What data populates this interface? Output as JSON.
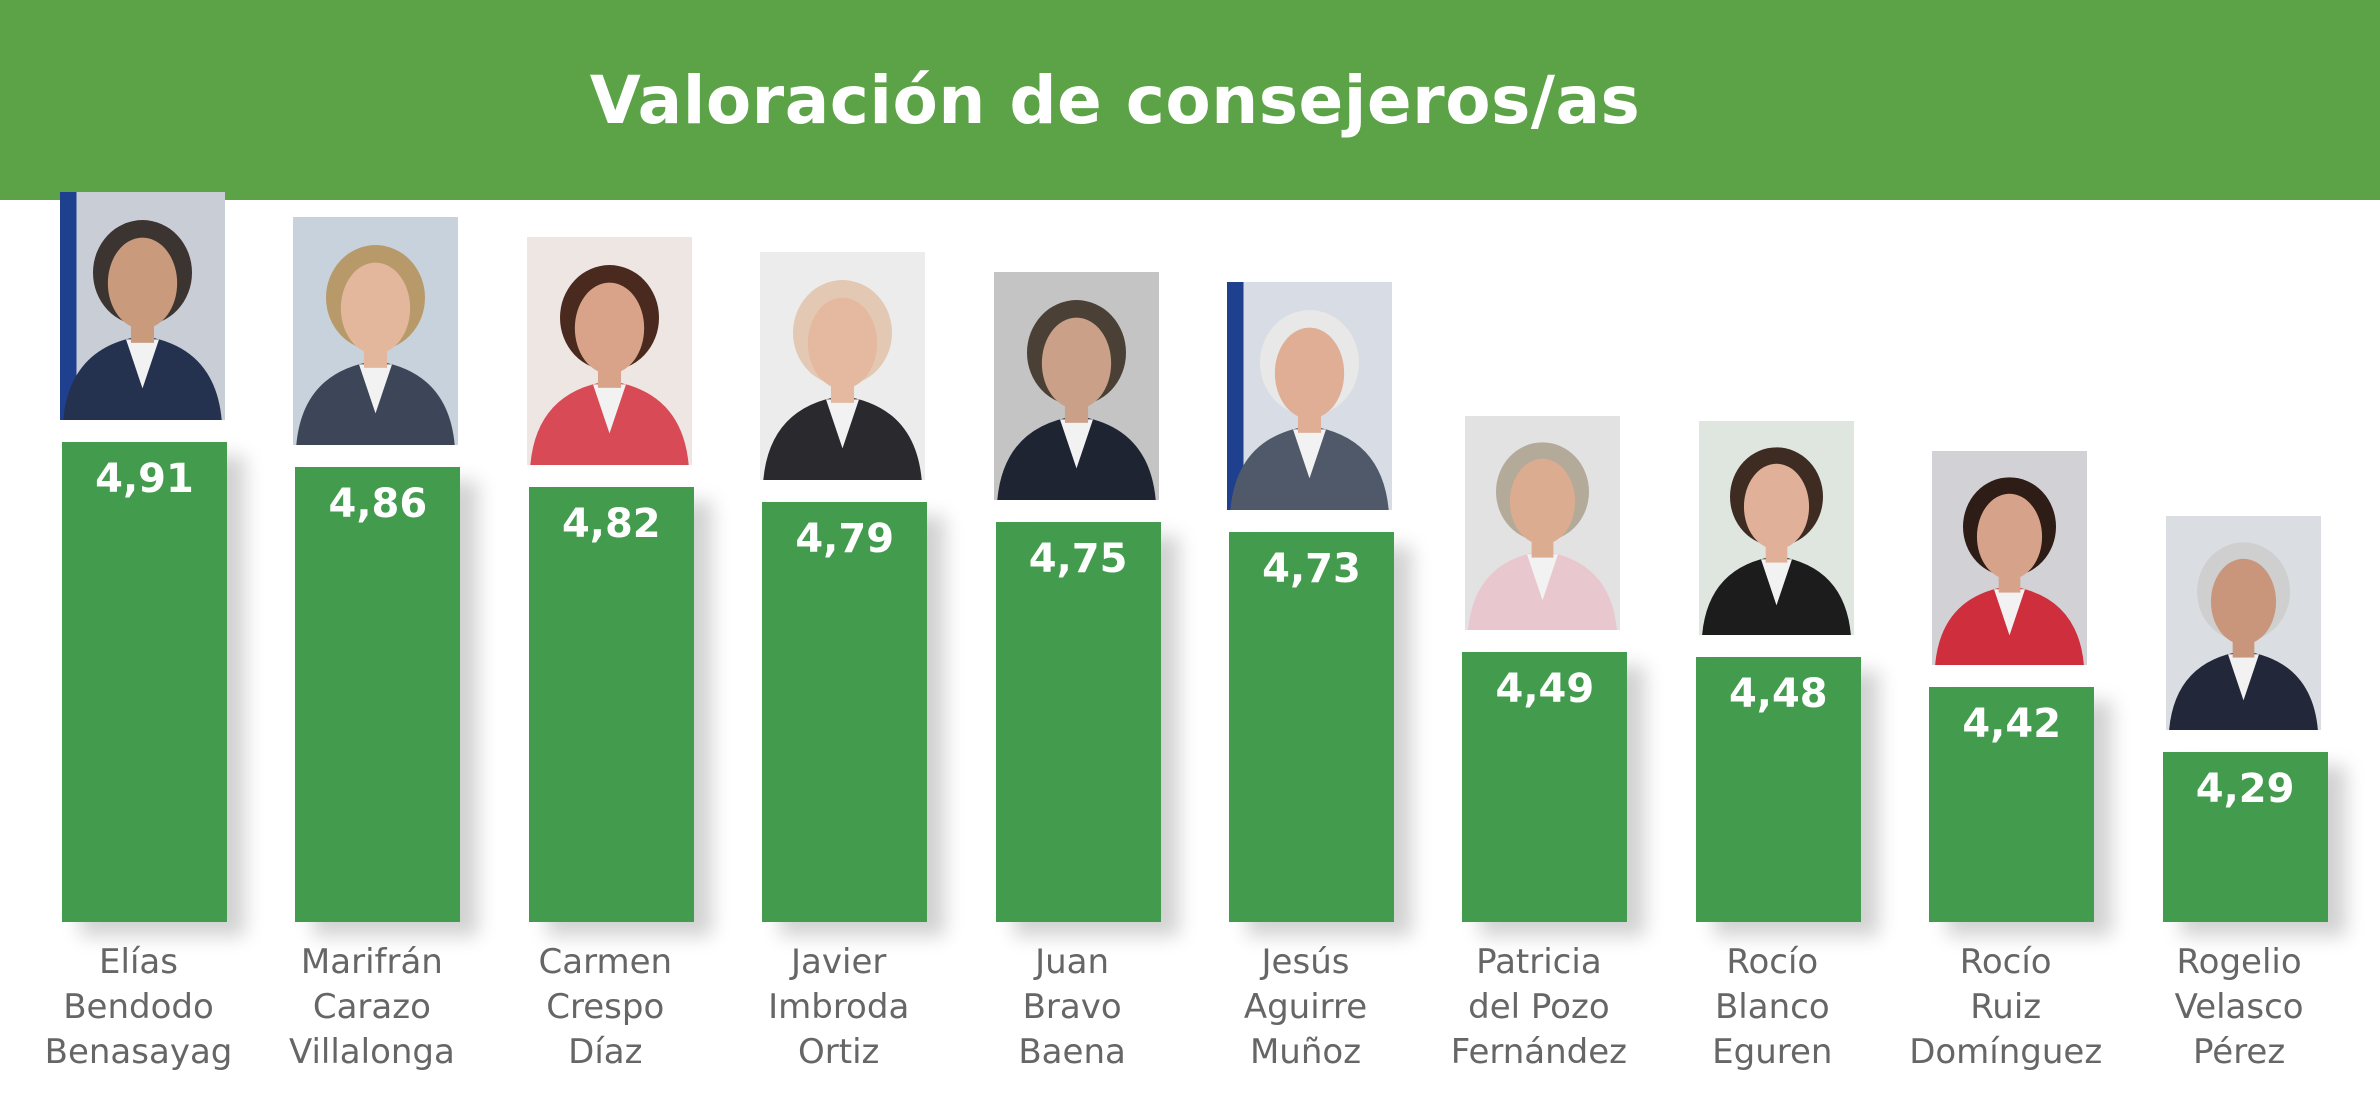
{
  "header": {
    "title": "Valoración de consejeros/as"
  },
  "colors": {
    "header_bg": "#5ba346",
    "bar": "#439b4d",
    "label": "#666666"
  },
  "chart_data": {
    "type": "bar",
    "title": "Valoración de consejeros/as",
    "categories": [
      "Elías Bendodo Benasayag",
      "Marifrán Carazo Villalonga",
      "Carmen Crespo Díaz",
      "Javier Imbroda Ortiz",
      "Juan Bravo Baena",
      "Jesús Aguirre Muñoz",
      "Patricia del Pozo Fernández",
      "Rocío Blanco Eguren",
      "Rocío Ruiz Domínguez",
      "Rogelio Velasco Pérez"
    ],
    "values": [
      4.91,
      4.86,
      4.82,
      4.79,
      4.75,
      4.73,
      4.49,
      4.48,
      4.42,
      4.29
    ],
    "xlabel": "",
    "ylabel": "",
    "grid": false,
    "items": [
      {
        "name_lines": [
          "Elías",
          "Bendodo",
          "Benasayag"
        ],
        "value_label": "4,91",
        "portrait": {
          "bg": "#c9cdd6",
          "suit": "#24324f",
          "hair": "#3b3430",
          "skin": "#c99a7c",
          "flag": true
        }
      },
      {
        "name_lines": [
          "Marifrán",
          "Carazo",
          "Villalonga"
        ],
        "value_label": "4,86",
        "portrait": {
          "bg": "#c8d2dc",
          "suit": "#3c4658",
          "hair": "#b89a6a",
          "skin": "#e2b79c",
          "flag": false
        }
      },
      {
        "name_lines": [
          "Carmen",
          "Crespo",
          "Díaz"
        ],
        "value_label": "4,82",
        "portrait": {
          "bg": "#ede6e2",
          "suit": "#d94a57",
          "hair": "#4a2a1e",
          "skin": "#d9a38a",
          "flag": false
        }
      },
      {
        "name_lines": [
          "Javier",
          "Imbroda",
          "Ortiz"
        ],
        "value_label": "4,79",
        "portrait": {
          "bg": "#ececec",
          "suit": "#2a2a2e",
          "hair": "#e3c9b3",
          "skin": "#e4b9a0",
          "flag": false
        }
      },
      {
        "name_lines": [
          "Juan",
          "Bravo",
          "Baena"
        ],
        "value_label": "4,75",
        "portrait": {
          "bg": "#c4c4c4",
          "suit": "#1f2433",
          "hair": "#4a4036",
          "skin": "#caa088",
          "flag": false
        }
      },
      {
        "name_lines": [
          "Jesús",
          "Aguirre",
          "Muñoz"
        ],
        "value_label": "4,73",
        "portrait": {
          "bg": "#d8dde5",
          "suit": "#50596a",
          "hair": "#e8e8e8",
          "skin": "#dfae94",
          "flag": true
        }
      },
      {
        "name_lines": [
          "Patricia",
          "del Pozo",
          "Fernández"
        ],
        "value_label": "4,49",
        "portrait": {
          "bg": "#e2e2e2",
          "suit": "#e8c7cf",
          "hair": "#b3aa9a",
          "skin": "#dcac90",
          "flag": false
        }
      },
      {
        "name_lines": [
          "Rocío",
          "Blanco",
          "Eguren"
        ],
        "value_label": "4,48",
        "portrait": {
          "bg": "#dfe6df",
          "suit": "#1c1c1c",
          "hair": "#3e2c22",
          "skin": "#e0b198",
          "flag": false
        }
      },
      {
        "name_lines": [
          "Rocío",
          "Ruiz",
          "Domínguez"
        ],
        "value_label": "4,42",
        "portrait": {
          "bg": "#d2d2d6",
          "suit": "#cf2e3c",
          "hair": "#2e1c16",
          "skin": "#d6a289",
          "flag": false
        }
      },
      {
        "name_lines": [
          "Rogelio",
          "Velasco",
          "Pérez"
        ],
        "value_label": "4,29",
        "portrait": {
          "bg": "#dadde2",
          "suit": "#23273a",
          "hair": "#cfcfcf",
          "skin": "#c9967c",
          "flag": false
        }
      }
    ]
  }
}
